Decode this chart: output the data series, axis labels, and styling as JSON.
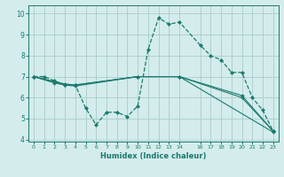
{
  "xlabel": "Humidex (Indice chaleur)",
  "bg_color": "#d4ecec",
  "grid_color": "#aacccc",
  "line_color": "#1a7a6e",
  "xlim": [
    -0.5,
    23.5
  ],
  "ylim": [
    3.9,
    10.4
  ],
  "xticks": [
    0,
    1,
    2,
    3,
    4,
    5,
    6,
    7,
    8,
    9,
    10,
    11,
    12,
    13,
    14,
    16,
    17,
    18,
    19,
    20,
    21,
    22,
    23
  ],
  "yticks": [
    4,
    5,
    6,
    7,
    8,
    9,
    10
  ],
  "line_dashed": {
    "x": [
      0,
      1,
      2,
      3,
      4,
      5,
      6,
      7,
      8,
      9,
      10,
      11,
      12,
      13,
      14,
      16,
      17,
      18,
      19,
      20,
      21,
      22,
      23
    ],
    "y": [
      7.0,
      7.0,
      6.8,
      6.6,
      6.6,
      5.5,
      4.7,
      5.3,
      5.3,
      5.1,
      5.6,
      8.3,
      9.8,
      9.5,
      9.6,
      8.5,
      8.0,
      7.8,
      7.2,
      7.2,
      6.0,
      5.4,
      4.4
    ]
  },
  "lines_solid": [
    {
      "x": [
        0,
        2,
        3,
        4,
        10,
        14,
        20,
        23
      ],
      "y": [
        7.0,
        6.7,
        6.6,
        6.6,
        7.0,
        7.0,
        6.1,
        4.4
      ]
    },
    {
      "x": [
        0,
        3,
        4,
        10,
        14,
        20,
        23
      ],
      "y": [
        7.0,
        6.6,
        6.55,
        7.0,
        7.0,
        6.0,
        4.4
      ]
    },
    {
      "x": [
        0,
        3,
        4,
        10,
        14,
        23
      ],
      "y": [
        7.0,
        6.65,
        6.6,
        7.0,
        7.0,
        4.35
      ]
    }
  ]
}
